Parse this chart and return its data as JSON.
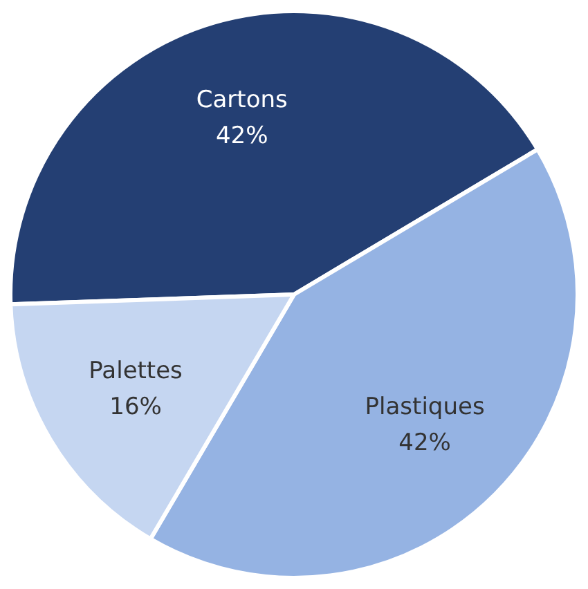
{
  "chart_data": {
    "type": "pie",
    "categories": [
      "Cartons",
      "Plastiques",
      "Palettes"
    ],
    "values": [
      42,
      42,
      16
    ],
    "value_labels": [
      "42%",
      "42%",
      "16%"
    ],
    "colors": [
      "#243f73",
      "#95b3e3",
      "#c5d6f1"
    ],
    "legend": false
  }
}
